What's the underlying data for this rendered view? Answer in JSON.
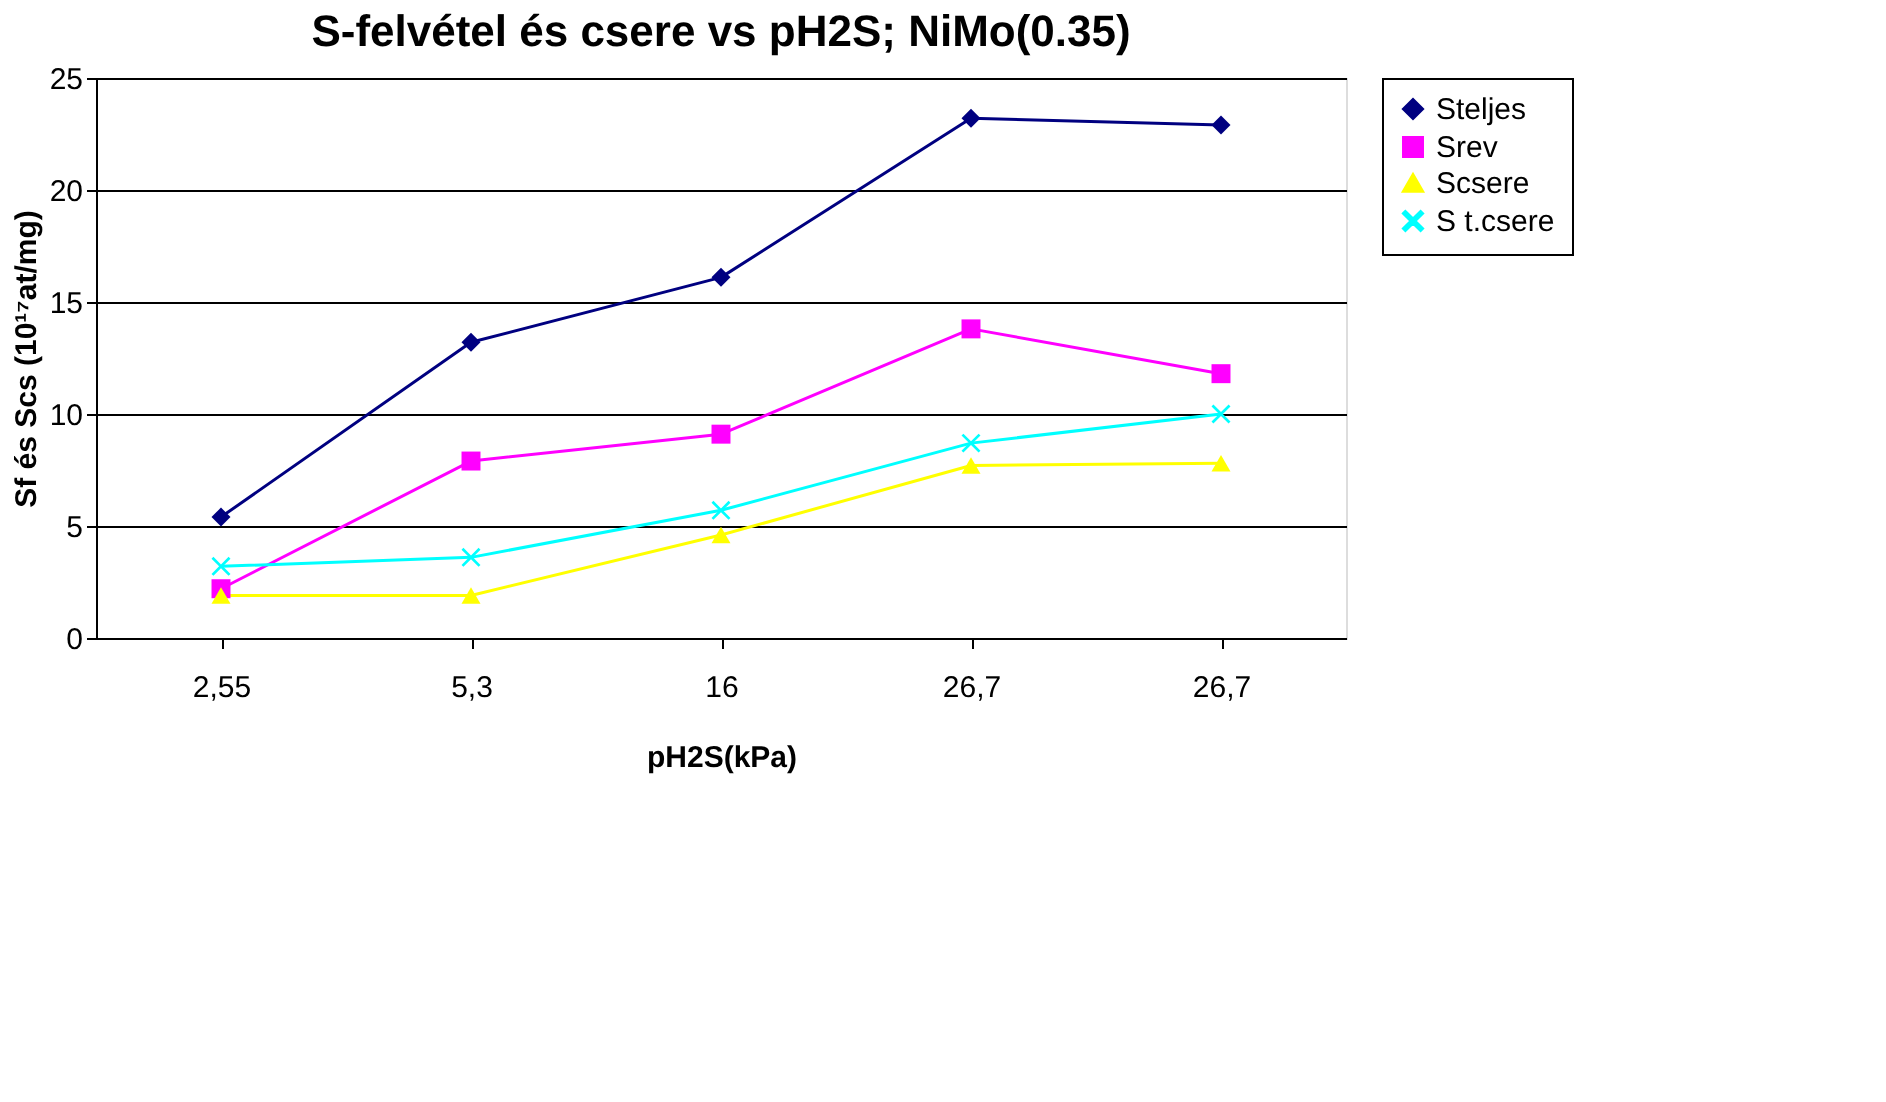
{
  "chart_data": {
    "type": "line",
    "title": "S-felvétel és csere vs pH2S; NiMo(0.35)",
    "xlabel": "pH2S(kPa)",
    "ylabel": "Sf és Scs (10¹⁷at/mg)",
    "categories": [
      "2,55",
      "5,3",
      "16",
      "26,7",
      "26,7"
    ],
    "series": [
      {
        "name": "Steljes",
        "color": "#000080",
        "marker": "diamond",
        "values": [
          5.4,
          13.2,
          16.1,
          23.2,
          22.9
        ]
      },
      {
        "name": "Srev",
        "color": "#ff00ff",
        "marker": "square",
        "values": [
          2.2,
          7.9,
          9.1,
          13.8,
          11.8
        ]
      },
      {
        "name": "Scsere",
        "color": "#ffff00",
        "marker": "triangle",
        "values": [
          1.9,
          1.9,
          4.6,
          7.7,
          7.8
        ]
      },
      {
        "name": "S t.csere",
        "color": "#00ffff",
        "marker": "cross",
        "values": [
          3.2,
          3.6,
          5.7,
          8.7,
          10.0
        ]
      }
    ],
    "ylim": [
      0,
      25
    ],
    "yticks": [
      0,
      5,
      10,
      15,
      20,
      25
    ],
    "grid": "y",
    "legend": "right"
  }
}
